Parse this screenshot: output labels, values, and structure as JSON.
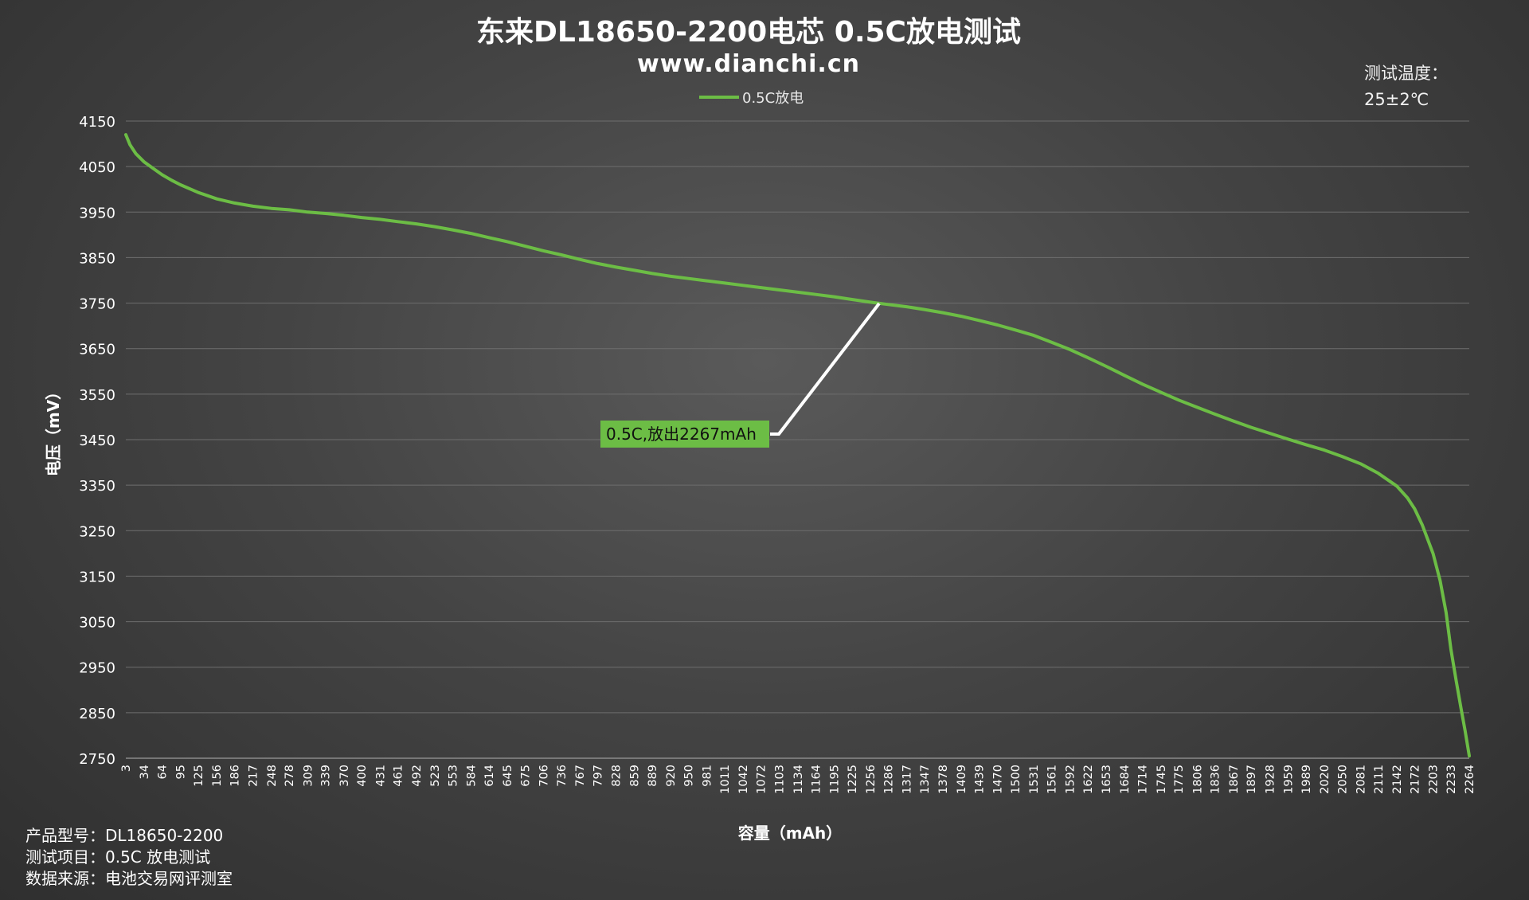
{
  "title": "东来DL18650-2200电芯 0.5C放电测试",
  "subtitle": "www.dianchi.cn",
  "temperature": {
    "label": "测试温度：",
    "value": "25±2℃"
  },
  "notes": [
    "产品型号：DL18650-2200",
    "测试项目：0.5C 放电测试",
    "数据来源：电池交易网评测室"
  ],
  "callout": {
    "text": "0.5C,放出2267mAh",
    "color": "#6cbd45"
  },
  "chart_data": {
    "type": "line",
    "xlabel": "容量（mAh）",
    "ylabel": "电压（mV）",
    "ylim": [
      2750,
      4150
    ],
    "yticks": [
      4150,
      4050,
      3950,
      3850,
      3750,
      3650,
      3550,
      3450,
      3350,
      3250,
      3150,
      3050,
      2950,
      2850,
      2750
    ],
    "x_categories": [
      "3",
      "34",
      "64",
      "95",
      "125",
      "156",
      "186",
      "217",
      "248",
      "278",
      "309",
      "339",
      "370",
      "400",
      "431",
      "461",
      "492",
      "523",
      "553",
      "584",
      "614",
      "645",
      "675",
      "706",
      "736",
      "767",
      "797",
      "828",
      "859",
      "889",
      "920",
      "950",
      "981",
      "1011",
      "1042",
      "1072",
      "1103",
      "1134",
      "1164",
      "1195",
      "1225",
      "1256",
      "1286",
      "1317",
      "1347",
      "1378",
      "1409",
      "1439",
      "1470",
      "1500",
      "1531",
      "1561",
      "1592",
      "1622",
      "1653",
      "1684",
      "1714",
      "1745",
      "1775",
      "1806",
      "1836",
      "1867",
      "1897",
      "1928",
      "1959",
      "1989",
      "2020",
      "2050",
      "2081",
      "2111",
      "2142",
      "2172",
      "2203",
      "2233",
      "2264"
    ],
    "legend": {
      "position": "top",
      "entries": [
        "0.5C放电"
      ]
    },
    "grid": true,
    "series": [
      {
        "name": "0.5C放电",
        "color": "#6cbd45",
        "x": [
          3,
          10,
          20,
          34,
          50,
          64,
          80,
          95,
          125,
          156,
          186,
          217,
          248,
          278,
          309,
          339,
          370,
          400,
          431,
          461,
          492,
          523,
          553,
          584,
          614,
          645,
          675,
          706,
          736,
          767,
          797,
          828,
          859,
          889,
          920,
          950,
          981,
          1011,
          1042,
          1072,
          1103,
          1134,
          1164,
          1195,
          1225,
          1256,
          1286,
          1317,
          1347,
          1378,
          1409,
          1439,
          1470,
          1500,
          1531,
          1561,
          1592,
          1622,
          1653,
          1684,
          1714,
          1745,
          1775,
          1806,
          1836,
          1867,
          1897,
          1928,
          1959,
          1989,
          2020,
          2050,
          2081,
          2111,
          2142,
          2160,
          2172,
          2185,
          2203,
          2215,
          2225,
          2233,
          2242,
          2250,
          2257,
          2264
        ],
        "y": [
          4120,
          4098,
          4078,
          4060,
          4045,
          4032,
          4020,
          4010,
          3993,
          3979,
          3970,
          3963,
          3958,
          3955,
          3950,
          3947,
          3943,
          3938,
          3934,
          3929,
          3924,
          3918,
          3911,
          3903,
          3894,
          3885,
          3875,
          3865,
          3856,
          3846,
          3837,
          3829,
          3822,
          3815,
          3809,
          3804,
          3799,
          3794,
          3789,
          3784,
          3779,
          3774,
          3769,
          3764,
          3758,
          3752,
          3747,
          3742,
          3736,
          3729,
          3721,
          3712,
          3702,
          3691,
          3679,
          3664,
          3648,
          3630,
          3611,
          3591,
          3572,
          3554,
          3537,
          3521,
          3506,
          3491,
          3477,
          3464,
          3451,
          3439,
          3427,
          3413,
          3397,
          3376,
          3348,
          3322,
          3298,
          3262,
          3200,
          3140,
          3070,
          2990,
          2920,
          2860,
          2810,
          2755
        ]
      }
    ]
  }
}
